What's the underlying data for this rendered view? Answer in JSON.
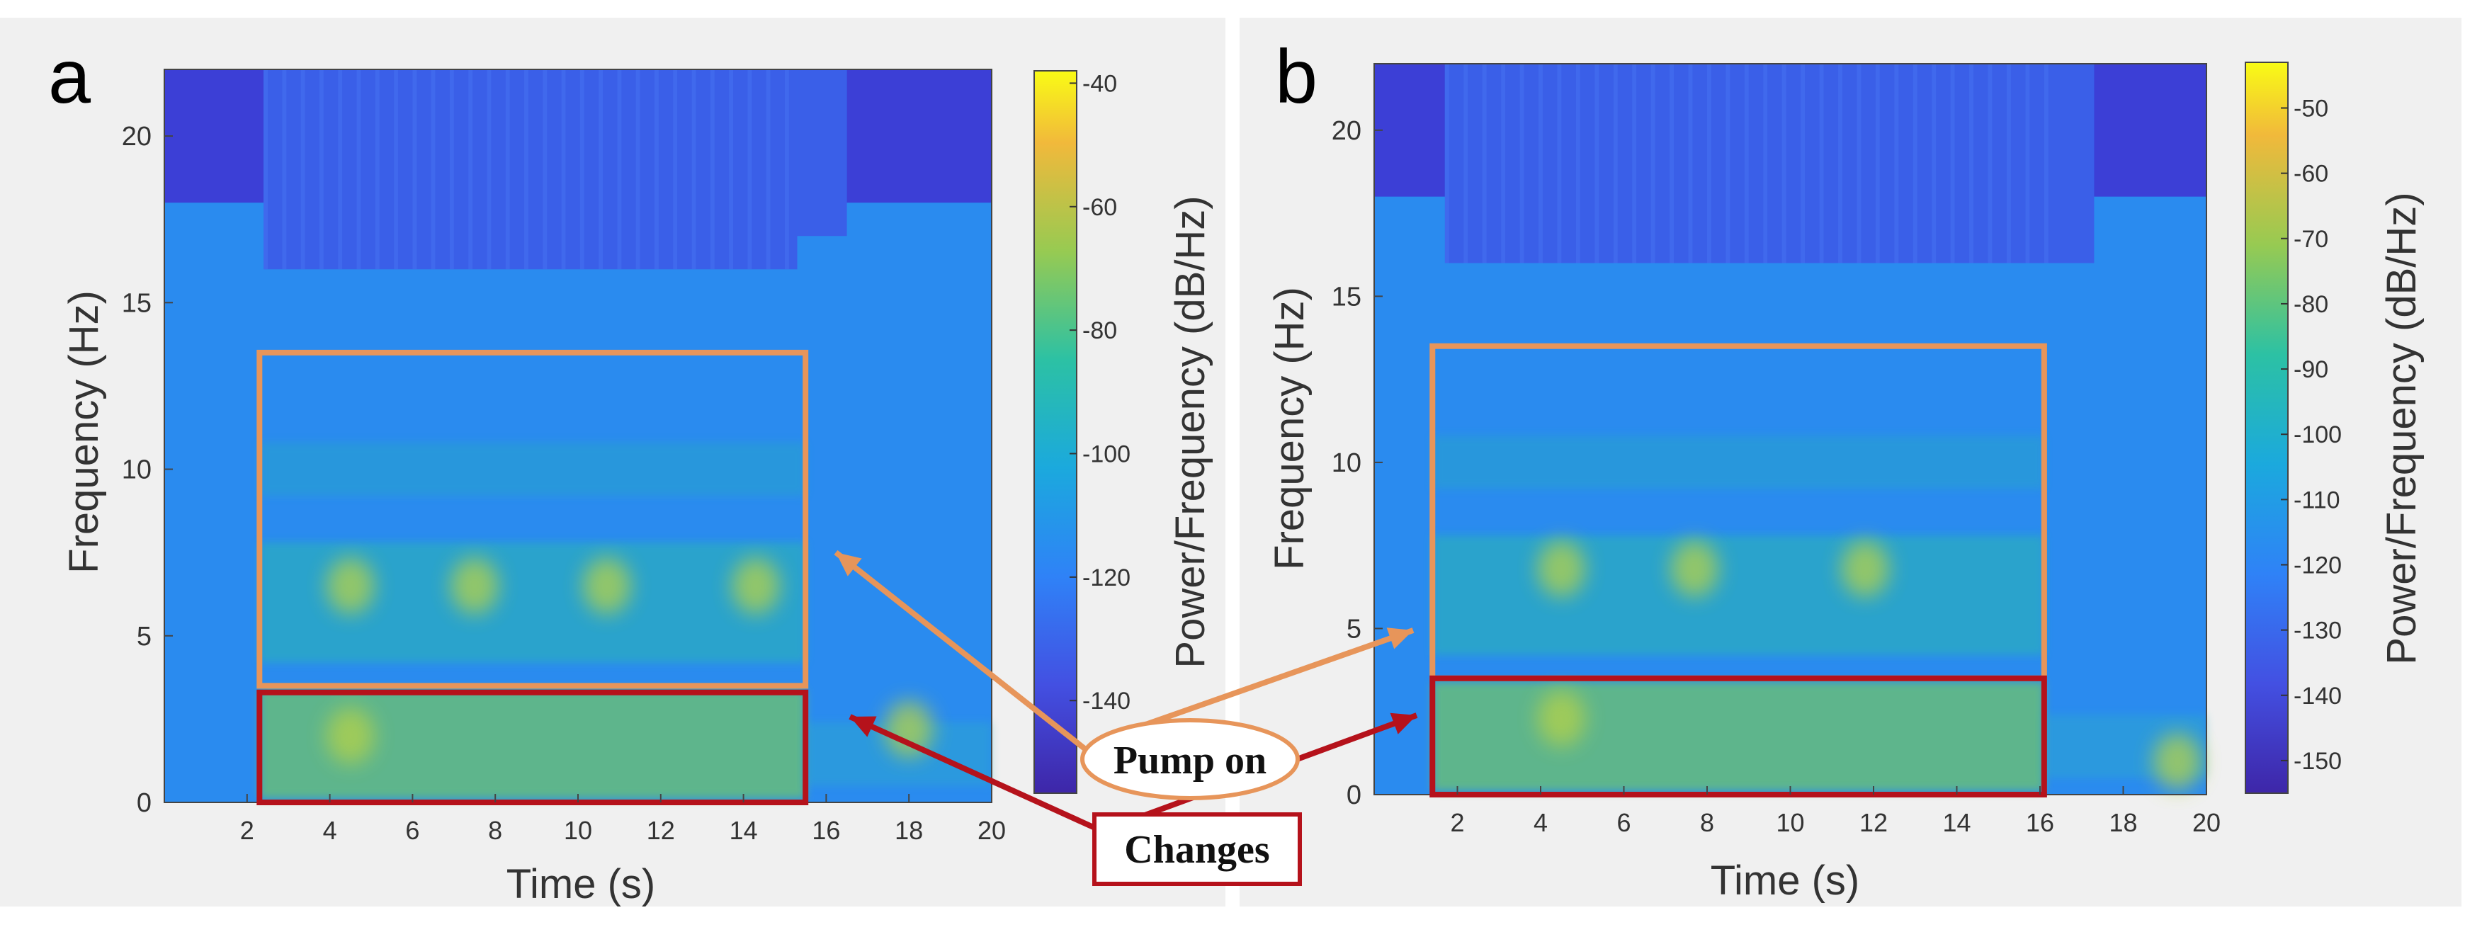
{
  "chart_data": [
    {
      "type": "heatmap",
      "panel_label": "a",
      "xlabel": "Time (s)",
      "ylabel": "Frequency (Hz)",
      "xlim": [
        0,
        20
      ],
      "ylim": [
        0,
        22
      ],
      "xticks": [
        2,
        4,
        6,
        8,
        10,
        12,
        14,
        16,
        18,
        20
      ],
      "yticks": [
        0,
        5,
        10,
        15,
        20
      ],
      "colorbar": {
        "label": "Power/Frequency (dB/Hz)",
        "range": [
          -155,
          -38
        ],
        "ticks": [
          -140,
          -120,
          -100,
          -80,
          -60,
          -40
        ],
        "colormap": "parula"
      },
      "boxes": [
        {
          "name": "pump-on-region",
          "x": [
            2.3,
            15.5
          ],
          "y": [
            3.5,
            13.5
          ],
          "color": "#e7955a"
        },
        {
          "name": "changes-region",
          "x": [
            2.3,
            15.5
          ],
          "y": [
            0,
            3.3
          ],
          "color": "#b5121b"
        }
      ],
      "blue_top": [
        [
          0,
          2.4,
          18
        ],
        [
          2.4,
          15.3,
          16
        ],
        [
          15.3,
          16.5,
          17
        ],
        [
          16.5,
          20,
          18
        ]
      ],
      "hot_spots": [
        [
          4.5,
          6.5
        ],
        [
          7.5,
          6.5
        ],
        [
          10.7,
          6.5
        ],
        [
          14.3,
          6.5
        ],
        [
          4.5,
          2
        ],
        [
          18,
          2.2
        ]
      ],
      "active_time": [
        2.3,
        15.5
      ]
    },
    {
      "type": "heatmap",
      "panel_label": "b",
      "xlabel": "Time (s)",
      "ylabel": "Frequency (Hz)",
      "xlim": [
        0,
        20
      ],
      "ylim": [
        0,
        22
      ],
      "xticks": [
        2,
        4,
        6,
        8,
        10,
        12,
        14,
        16,
        18,
        20
      ],
      "yticks": [
        0,
        5,
        10,
        15,
        20
      ],
      "colorbar": {
        "label": "Power/Frequency (dB/Hz)",
        "range": [
          -155,
          -43
        ],
        "ticks": [
          -150,
          -140,
          -130,
          -120,
          -110,
          -100,
          -90,
          -80,
          -70,
          -60,
          -50
        ],
        "colormap": "parula"
      },
      "boxes": [
        {
          "name": "pump-on-region",
          "x": [
            1.4,
            16.1
          ],
          "y": [
            3.5,
            13.5
          ],
          "color": "#e7955a"
        },
        {
          "name": "changes-region",
          "x": [
            1.4,
            16.1
          ],
          "y": [
            0,
            3.5
          ],
          "color": "#b5121b"
        }
      ],
      "blue_top": [
        [
          0,
          1.7,
          18
        ],
        [
          1.7,
          16.4,
          16
        ],
        [
          16.4,
          17.3,
          16
        ],
        [
          17.3,
          20,
          18
        ]
      ],
      "hot_spots": [
        [
          4.5,
          6.8
        ],
        [
          7.7,
          6.8
        ],
        [
          11.8,
          6.8
        ],
        [
          4.5,
          2.3
        ],
        [
          19.3,
          1
        ]
      ],
      "active_time": [
        1.4,
        16.1
      ]
    }
  ],
  "annotations": {
    "pump_on": "Pump on",
    "changes": "Changes",
    "pump_on_color": "#e7955a",
    "changes_color": "#b5121b"
  }
}
